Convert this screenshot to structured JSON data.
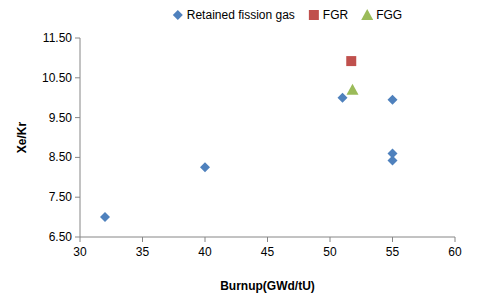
{
  "chart_data": {
    "type": "scatter",
    "x_label": "Burnup(GWd/tU)",
    "y_label": "Xe/Kr",
    "xlim": [
      30,
      60
    ],
    "xticks": [
      30,
      35,
      40,
      45,
      50,
      55,
      60
    ],
    "ylim": [
      6.5,
      11.5
    ],
    "yticks": [
      {
        "value": 6.5,
        "label": "6.50"
      },
      {
        "value": 7.5,
        "label": "7.50"
      },
      {
        "value": 8.5,
        "label": "8.50"
      },
      {
        "value": 9.5,
        "label": "9.50"
      },
      {
        "value": 10.5,
        "label": "10.50"
      },
      {
        "value": 11.5,
        "label": "11.50"
      }
    ],
    "grid": false,
    "legend": "top",
    "series": [
      {
        "name": "Retained fission gas",
        "color": "#4f81bd",
        "marker": "diamond",
        "x": [
          32,
          40,
          51,
          55,
          55,
          55
        ],
        "values": [
          7.0,
          8.25,
          10.0,
          9.95,
          8.6,
          8.42
        ]
      },
      {
        "name": "FGR",
        "color": "#c0504d",
        "marker": "square",
        "x": [
          51.7
        ],
        "values": [
          10.92
        ]
      },
      {
        "name": "FGG",
        "color": "#9bbb59",
        "marker": "triangle",
        "x": [
          51.8
        ],
        "values": [
          10.2
        ]
      }
    ]
  }
}
